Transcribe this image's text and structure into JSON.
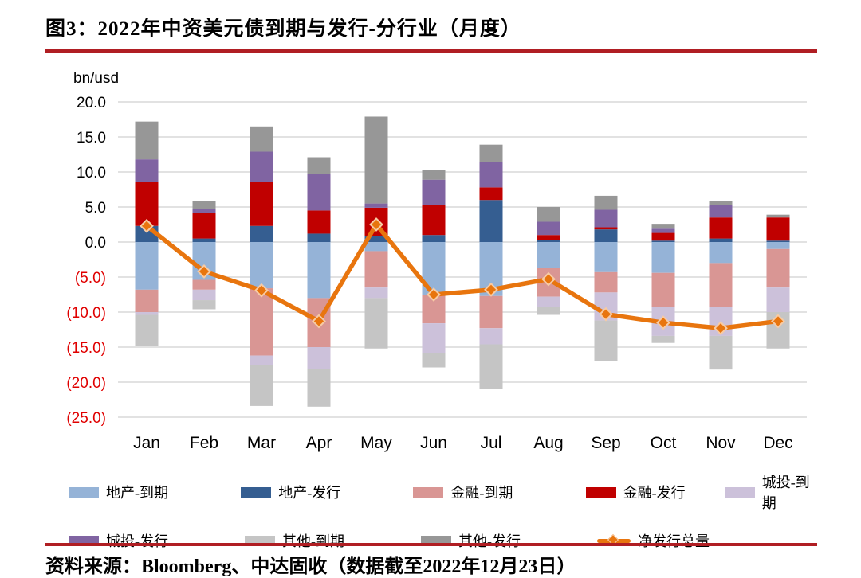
{
  "header": {
    "title": "图3：2022年中资美元债到期与发行-分行业（月度）"
  },
  "footer": {
    "source": "资料来源：Bloomberg、中达固收（数据截至2022年12月23日）"
  },
  "chart_data": {
    "type": "bar",
    "subtype": "stacked-bars-with-net-line",
    "title": "2022年中资美元债到期与发行-分行业（月度）",
    "unit_label": "bn/usd",
    "xlabel": "",
    "ylabel": "bn/usd",
    "ylim": [
      -25,
      20
    ],
    "grid": true,
    "legend_position": "bottom",
    "categories": [
      "Jan",
      "Feb",
      "Mar",
      "Apr",
      "May",
      "Jun",
      "Jul",
      "Aug",
      "Sep",
      "Oct",
      "Nov",
      "Dec"
    ],
    "ytick_values": [
      20,
      15,
      10,
      5,
      0,
      -5,
      -10,
      -15,
      -20,
      -25
    ],
    "ytick_labels": [
      "20.0",
      "15.0",
      "10.0",
      "5.0",
      "0.0",
      "(5.0)",
      "(10.0)",
      "(15.0)",
      "(20.0)",
      "(25.0)"
    ],
    "series": [
      {
        "name": "地产-到期",
        "color": "#95b3d7",
        "values": [
          -6.8,
          -5.4,
          -6.6,
          -8.0,
          -1.3,
          -7.6,
          -7.7,
          -3.7,
          -4.3,
          -4.4,
          -3.0,
          -1.0
        ]
      },
      {
        "name": "地产-发行",
        "color": "#355e91",
        "values": [
          2.3,
          0.5,
          2.3,
          1.2,
          0.8,
          1.0,
          6.0,
          0.3,
          1.8,
          0.2,
          0.5,
          0.2
        ]
      },
      {
        "name": "金融-到期",
        "color": "#d99694",
        "values": [
          -3.2,
          -1.4,
          -9.6,
          -7.0,
          -5.2,
          -4.0,
          -4.6,
          -4.1,
          -2.9,
          -4.9,
          -6.3,
          -5.5
        ]
      },
      {
        "name": "金融-发行",
        "color": "#c00000",
        "values": [
          6.3,
          3.6,
          6.3,
          3.3,
          4.1,
          4.3,
          1.8,
          0.7,
          0.3,
          1.1,
          3.0,
          3.3
        ]
      },
      {
        "name": "城投-到期",
        "color": "#ccc1da",
        "values": [
          -0.4,
          -1.5,
          -1.4,
          -3.1,
          -1.5,
          -4.2,
          -2.3,
          -1.5,
          -4.0,
          -4.1,
          -4.1,
          -3.5
        ]
      },
      {
        "name": "城投-发行",
        "color": "#8064a2",
        "values": [
          3.2,
          0.6,
          4.3,
          5.2,
          0.6,
          3.6,
          3.6,
          1.9,
          2.5,
          0.6,
          1.8,
          0.0
        ]
      },
      {
        "name": "其他-到期",
        "color": "#c5c5c5",
        "values": [
          -4.4,
          -1.3,
          -5.8,
          -5.4,
          -7.2,
          -2.1,
          -6.4,
          -1.1,
          -5.8,
          -1.0,
          -4.8,
          -5.2
        ]
      },
      {
        "name": "其他-发行",
        "color": "#979797",
        "values": [
          5.4,
          1.1,
          3.6,
          2.4,
          12.4,
          1.4,
          2.5,
          2.1,
          2.0,
          0.7,
          0.6,
          0.4
        ]
      }
    ],
    "line_series": {
      "name": "净发行总量",
      "color": "#e8750e",
      "marker": "diamond",
      "values": [
        2.3,
        -4.2,
        -6.9,
        -11.3,
        2.5,
        -7.5,
        -6.8,
        -5.3,
        -10.3,
        -11.5,
        -12.3,
        -11.3
      ]
    },
    "colors": {
      "grid": "#d9d9d9",
      "tick_text": "#000000",
      "negative_tick_text": "#e00000",
      "marker_outline": "#f7cba4"
    }
  },
  "legend": {
    "rows": [
      [
        {
          "label": "地产-到期",
          "type": "swatch",
          "color": "#95b3d7"
        },
        {
          "label": "地产-发行",
          "type": "swatch",
          "color": "#355e91"
        },
        {
          "label": "金融-到期",
          "type": "swatch",
          "color": "#d99694"
        },
        {
          "label": "金融-发行",
          "type": "swatch",
          "color": "#c00000"
        },
        {
          "label": "城投-到期",
          "type": "swatch",
          "color": "#ccc1da"
        }
      ],
      [
        {
          "label": "城投-发行",
          "type": "swatch",
          "color": "#8064a2"
        },
        {
          "label": "其他-到期",
          "type": "swatch",
          "color": "#c5c5c5"
        },
        {
          "label": "其他-发行",
          "type": "swatch",
          "color": "#979797"
        },
        {
          "label": "净发行总量",
          "type": "line",
          "color": "#e8750e"
        }
      ]
    ]
  },
  "accent": {
    "rule_color": "#b01e23"
  }
}
